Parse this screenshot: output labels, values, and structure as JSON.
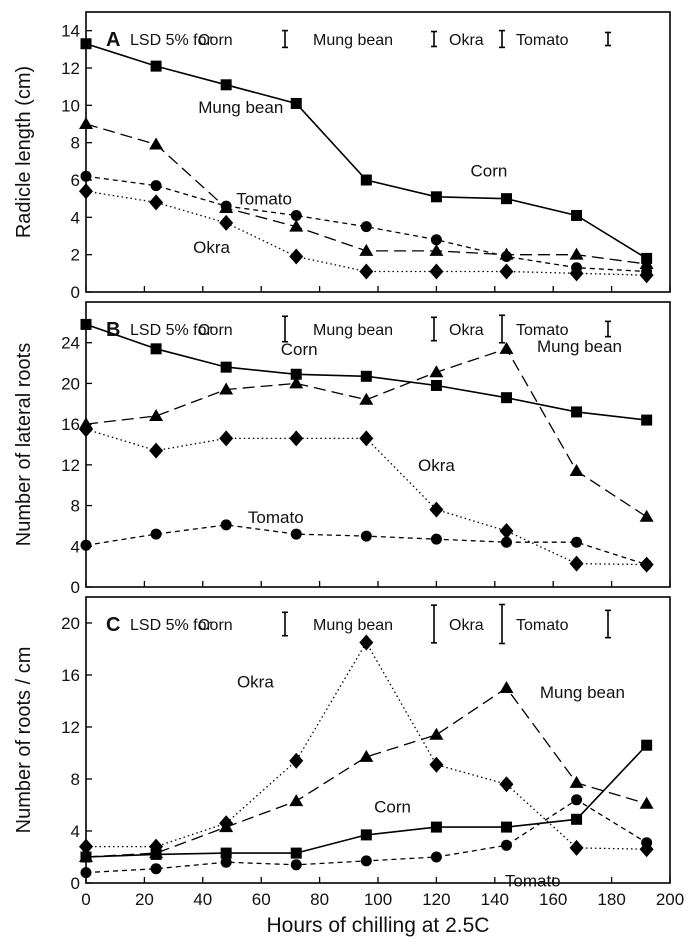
{
  "figure": {
    "xlabel": "Hours of chilling at 2.5C",
    "x_ticks": [
      0,
      20,
      40,
      60,
      80,
      100,
      120,
      140,
      160,
      180,
      200
    ],
    "xlim": [
      0,
      200
    ]
  },
  "chart_data": [
    {
      "type": "line",
      "panel_label": "A",
      "ylabel": "Radicle length (cm)",
      "ylim": [
        0,
        15
      ],
      "y_ticks": [
        0,
        2,
        4,
        6,
        8,
        10,
        12,
        14
      ],
      "x": [
        0,
        24,
        48,
        72,
        96,
        120,
        144,
        168,
        192
      ],
      "lsd_prefix": "LSD 5% for",
      "lsd": [
        {
          "label": "Corn",
          "value": 0.9
        },
        {
          "label": "Mung bean",
          "value": 0.8
        },
        {
          "label": "Okra",
          "value": 0.9
        },
        {
          "label": "Tomato",
          "value": 0.7
        }
      ],
      "series": [
        {
          "name": "Corn",
          "marker": "square",
          "dash": "solid",
          "values": [
            13.3,
            12.1,
            11.1,
            10.1,
            6.0,
            5.1,
            5.0,
            4.1,
            1.8
          ]
        },
        {
          "name": "Mung bean",
          "marker": "triangle",
          "dash": "long",
          "values": [
            9.0,
            7.9,
            4.5,
            3.5,
            2.2,
            2.2,
            2.0,
            2.0,
            1.5
          ]
        },
        {
          "name": "Tomato",
          "marker": "circle",
          "dash": "short",
          "values": [
            6.2,
            5.7,
            4.6,
            4.1,
            3.5,
            2.8,
            1.9,
            1.3,
            1.1
          ]
        },
        {
          "name": "Okra",
          "marker": "diamond",
          "dash": "dotted",
          "values": [
            5.4,
            4.8,
            3.7,
            1.9,
            1.1,
            1.1,
            1.1,
            1.0,
            0.9
          ]
        }
      ],
      "labels": [
        {
          "text": "Mung bean",
          "x": 53,
          "y": 9.9
        },
        {
          "text": "Corn",
          "x": 138,
          "y": 6.5
        },
        {
          "text": "Tomato",
          "x": 61,
          "y": 5.0
        },
        {
          "text": "Okra",
          "x": 43,
          "y": 2.4
        }
      ]
    },
    {
      "type": "line",
      "panel_label": "B",
      "ylabel": "Number of lateral roots",
      "ylim": [
        0,
        28
      ],
      "y_ticks": [
        0,
        4,
        8,
        12,
        16,
        20,
        24
      ],
      "x": [
        0,
        24,
        48,
        72,
        96,
        120,
        144,
        168,
        192
      ],
      "lsd_prefix": "LSD 5% for",
      "lsd": [
        {
          "label": "Corn",
          "value": 2.5
        },
        {
          "label": "Mung bean",
          "value": 2.3
        },
        {
          "label": "Okra",
          "value": 2.7
        },
        {
          "label": "Tomato",
          "value": 1.5
        }
      ],
      "series": [
        {
          "name": "Corn",
          "marker": "square",
          "dash": "solid",
          "values": [
            25.8,
            23.4,
            21.6,
            20.9,
            20.7,
            19.8,
            18.6,
            17.2,
            16.4
          ]
        },
        {
          "name": "Mung bean",
          "marker": "triangle",
          "dash": "long",
          "values": [
            16.0,
            16.8,
            19.4,
            20.0,
            18.4,
            21.1,
            23.4,
            11.4,
            6.9
          ]
        },
        {
          "name": "Okra",
          "marker": "diamond",
          "dash": "dotted",
          "values": [
            15.5,
            13.4,
            14.6,
            14.6,
            14.6,
            7.6,
            5.5,
            2.3,
            2.2
          ]
        },
        {
          "name": "Tomato",
          "marker": "circle",
          "dash": "short",
          "values": [
            4.1,
            5.2,
            6.1,
            5.2,
            5.0,
            4.7,
            4.4,
            4.4,
            2.2
          ]
        }
      ],
      "labels": [
        {
          "text": "Corn",
          "x": 73,
          "y": 23.4
        },
        {
          "text": "Mung bean",
          "x": 169,
          "y": 23.7
        },
        {
          "text": "Okra",
          "x": 120,
          "y": 12.0
        },
        {
          "text": "Tomato",
          "x": 65,
          "y": 6.9
        }
      ]
    },
    {
      "type": "line",
      "panel_label": "C",
      "ylabel": "Number of roots / cm",
      "ylim": [
        0,
        22
      ],
      "y_ticks": [
        0,
        4,
        8,
        12,
        16,
        20
      ],
      "x": [
        0,
        24,
        48,
        72,
        96,
        120,
        144,
        168,
        192
      ],
      "lsd_prefix": "LSD 5% for",
      "lsd": [
        {
          "label": "Corn",
          "value": 1.8
        },
        {
          "label": "Mung bean",
          "value": 2.9
        },
        {
          "label": "Okra",
          "value": 3.0
        },
        {
          "label": "Tomato",
          "value": 2.1
        }
      ],
      "series": [
        {
          "name": "Okra",
          "marker": "diamond",
          "dash": "dotted",
          "values": [
            2.8,
            2.8,
            4.6,
            9.4,
            18.5,
            9.1,
            7.6,
            2.7,
            2.6
          ]
        },
        {
          "name": "Mung bean",
          "marker": "triangle",
          "dash": "long",
          "values": [
            2.0,
            2.3,
            4.3,
            6.3,
            9.7,
            11.4,
            15.0,
            7.7,
            6.1
          ]
        },
        {
          "name": "Corn",
          "marker": "square",
          "dash": "solid",
          "values": [
            2.0,
            2.2,
            2.3,
            2.3,
            3.7,
            4.3,
            4.3,
            4.9,
            10.6
          ]
        },
        {
          "name": "Tomato",
          "marker": "circle",
          "dash": "short",
          "values": [
            0.8,
            1.1,
            1.6,
            1.4,
            1.7,
            2.0,
            2.9,
            6.4,
            3.1
          ]
        }
      ],
      "labels": [
        {
          "text": "Okra",
          "x": 58,
          "y": 15.5
        },
        {
          "text": "Mung bean",
          "x": 170,
          "y": 14.7
        },
        {
          "text": "Corn",
          "x": 105,
          "y": 5.9
        },
        {
          "text": "Tomato",
          "x": 153,
          "y": 0.2
        }
      ]
    }
  ]
}
